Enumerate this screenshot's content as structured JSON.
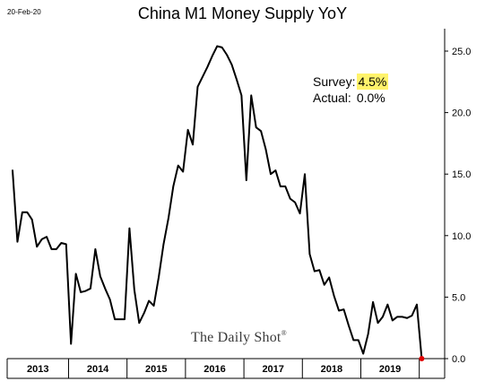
{
  "date_label": "20-Feb-20",
  "stats": {
    "survey_label": "Survey:",
    "survey_value": "4.5%",
    "actual_label": "Actual:",
    "actual_value": "0.0%"
  },
  "watermark": {
    "text": "The Daily Shot",
    "mark": "®"
  },
  "colors": {
    "line": "#000000",
    "highlight": "#fff36b",
    "last_point": "#e00000",
    "axis": "#000000",
    "grid": "#ffffff"
  },
  "chart_data": {
    "type": "line",
    "title": "China M1 Money Supply YoY",
    "xlabel": "",
    "ylabel": "",
    "ylim": [
      0,
      26.5
    ],
    "grid": false,
    "legend": "none",
    "y_axis_side": "right",
    "y_ticks": [
      {
        "value": 0,
        "label": "0.0"
      },
      {
        "value": 5,
        "label": "5.0"
      },
      {
        "value": 10,
        "label": "10.0"
      },
      {
        "value": 15,
        "label": "15.0"
      },
      {
        "value": 20,
        "label": "20.0"
      },
      {
        "value": 25,
        "label": "25.0"
      }
    ],
    "x_labels": [
      "2013",
      "2014",
      "2015",
      "2016",
      "2017",
      "2018",
      "2019"
    ],
    "series": [
      {
        "x": [
          "2013-01",
          "2013-02",
          "2013-03",
          "2013-04",
          "2013-05",
          "2013-06",
          "2013-07",
          "2013-08",
          "2013-09",
          "2013-10",
          "2013-11",
          "2013-12",
          "2014-01",
          "2014-02",
          "2014-03",
          "2014-04",
          "2014-05",
          "2014-06",
          "2014-07",
          "2014-08",
          "2014-09",
          "2014-10",
          "2014-11",
          "2014-12",
          "2015-01",
          "2015-02",
          "2015-03",
          "2015-04",
          "2015-05",
          "2015-06",
          "2015-07",
          "2015-08",
          "2015-09",
          "2015-10",
          "2015-11",
          "2015-12",
          "2016-01",
          "2016-02",
          "2016-03",
          "2016-04",
          "2016-05",
          "2016-06",
          "2016-07",
          "2016-08",
          "2016-09",
          "2016-10",
          "2016-11",
          "2016-12",
          "2017-01",
          "2017-02",
          "2017-03",
          "2017-04",
          "2017-05",
          "2017-06",
          "2017-07",
          "2017-08",
          "2017-09",
          "2017-10",
          "2017-11",
          "2017-12",
          "2018-01",
          "2018-02",
          "2018-03",
          "2018-04",
          "2018-05",
          "2018-06",
          "2018-07",
          "2018-08",
          "2018-09",
          "2018-10",
          "2018-11",
          "2018-12",
          "2019-01",
          "2019-02",
          "2019-03",
          "2019-04",
          "2019-05",
          "2019-06",
          "2019-07",
          "2019-08",
          "2019-09",
          "2019-10",
          "2019-11",
          "2019-12",
          "2020-01"
        ],
        "values": [
          15.3,
          9.5,
          11.9,
          11.9,
          11.3,
          9.1,
          9.7,
          9.9,
          8.9,
          8.9,
          9.4,
          9.3,
          1.2,
          6.9,
          5.4,
          5.5,
          5.7,
          8.9,
          6.7,
          5.7,
          4.8,
          3.2,
          3.2,
          3.2,
          10.6,
          5.6,
          2.9,
          3.7,
          4.7,
          4.3,
          6.6,
          9.3,
          11.4,
          14.0,
          15.7,
          15.2,
          18.6,
          17.4,
          22.1,
          22.9,
          23.7,
          24.6,
          25.4,
          25.3,
          24.7,
          23.9,
          22.7,
          21.4,
          14.5,
          21.4,
          18.8,
          18.5,
          17.0,
          15.0,
          15.3,
          14.0,
          14.0,
          13.0,
          12.7,
          11.8,
          15.0,
          8.5,
          7.1,
          7.2,
          6.0,
          6.6,
          5.1,
          3.9,
          4.0,
          2.7,
          1.5,
          1.5,
          0.4,
          2.0,
          4.6,
          2.9,
          3.4,
          4.4,
          3.1,
          3.4,
          3.4,
          3.3,
          3.5,
          4.4,
          0.0
        ],
        "last_point_marked": true
      }
    ]
  }
}
